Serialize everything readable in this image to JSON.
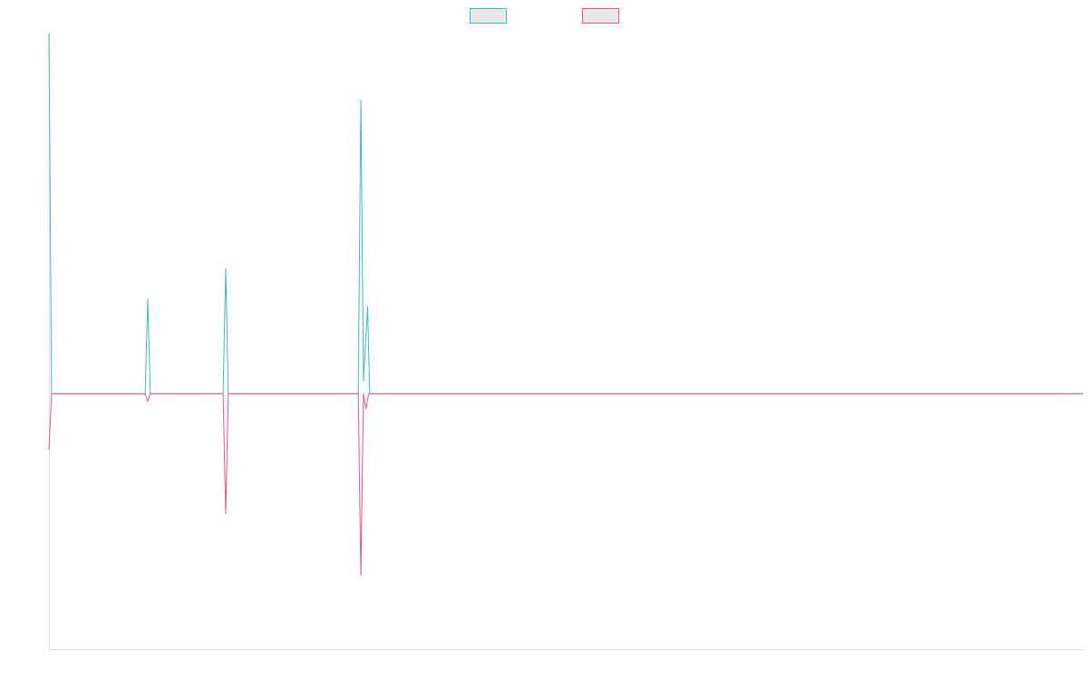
{
  "chart_data": {
    "type": "line",
    "title": "",
    "xlabel": "",
    "ylabel": "",
    "grid": false,
    "legend_position": "top-center",
    "x_count": 200,
    "ylim": [
      -100,
      141
    ],
    "colors": {
      "series_1": "#3bbfb6",
      "series_2": "#f0557e",
      "legend_fill": "#e8e8e8",
      "axis": "#e0e0e0"
    },
    "series": [
      {
        "name": "",
        "color": "#3bbfb6",
        "points": [
          [
            0,
            141
          ],
          [
            0.5,
            0
          ],
          [
            18.5,
            0
          ],
          [
            19,
            37
          ],
          [
            19.5,
            0
          ],
          [
            33.5,
            0
          ],
          [
            34,
            49
          ],
          [
            34.5,
            0
          ],
          [
            59.5,
            0
          ],
          [
            60,
            115
          ],
          [
            60.5,
            5
          ],
          [
            61.3,
            34
          ],
          [
            61.7,
            0
          ],
          [
            199,
            0
          ]
        ]
      },
      {
        "name": "",
        "color": "#f0557e",
        "points": [
          [
            0,
            -22
          ],
          [
            0.5,
            0
          ],
          [
            18.5,
            0
          ],
          [
            19,
            -3
          ],
          [
            19.5,
            0
          ],
          [
            33.5,
            0
          ],
          [
            34,
            -47
          ],
          [
            34.5,
            0
          ],
          [
            59.5,
            0
          ],
          [
            60,
            -71
          ],
          [
            60.5,
            0
          ],
          [
            61,
            -6
          ],
          [
            61.5,
            0
          ],
          [
            199,
            0
          ]
        ]
      }
    ]
  }
}
